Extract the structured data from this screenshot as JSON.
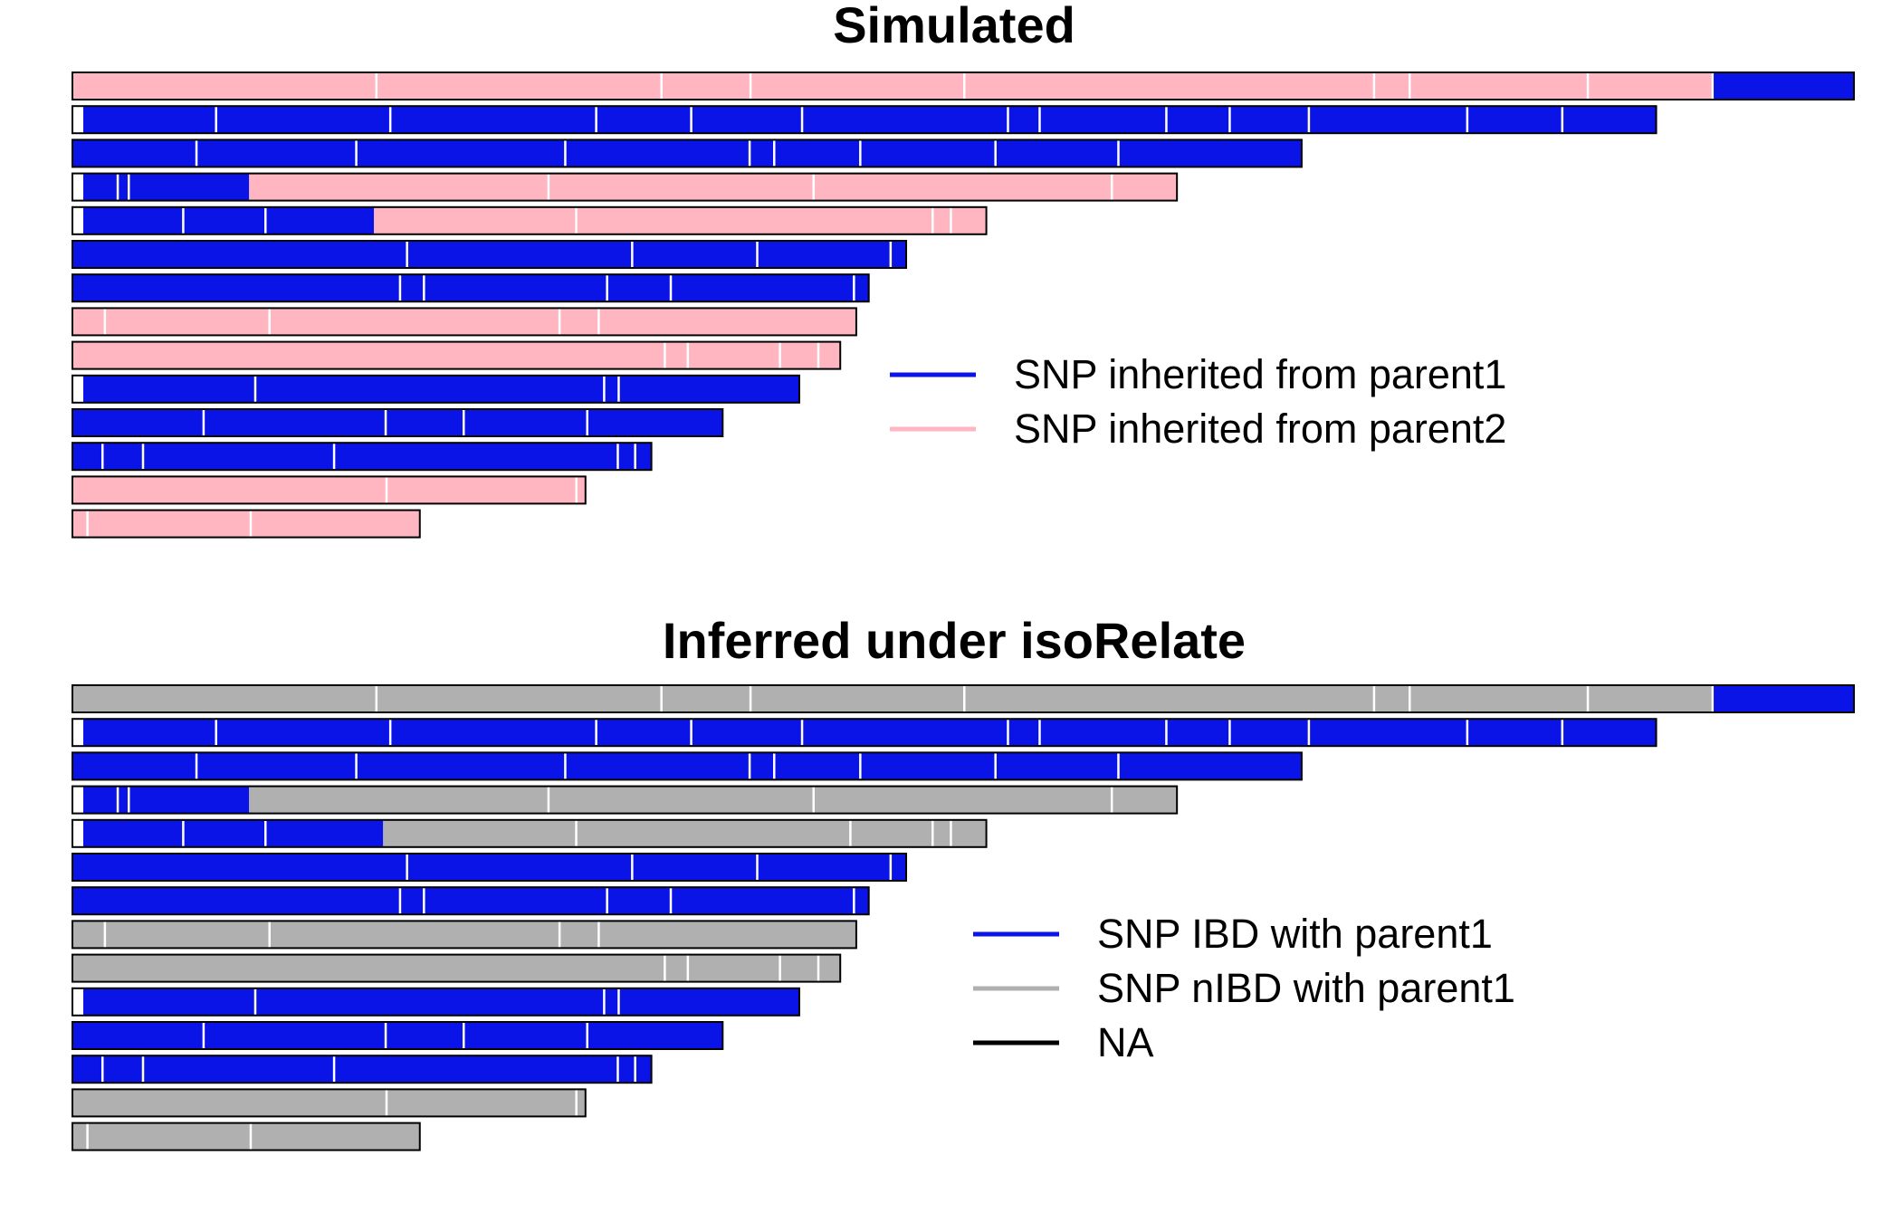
{
  "panels": [
    {
      "id": "simulated",
      "title": "Simulated",
      "chromosomes": [
        {
          "segments": [
            {
              "end": 0.92,
              "color": "pink"
            },
            {
              "end": 1.0,
              "color": "blue"
            }
          ],
          "gaps": [
            0.17,
            0.33,
            0.38,
            0.5,
            0.73,
            0.75,
            0.85,
            0.92
          ]
        },
        {
          "na_start": true,
          "segments": [
            {
              "end": 1.0,
              "color": "blue"
            }
          ],
          "gaps": [
            0.09,
            0.2,
            0.33,
            0.39,
            0.46,
            0.59,
            0.61,
            0.69,
            0.73,
            0.78,
            0.88,
            0.94
          ]
        },
        {
          "segments": [
            {
              "end": 1.0,
              "color": "blue"
            }
          ],
          "gaps": [
            0.1,
            0.23,
            0.4,
            0.55,
            0.57,
            0.64,
            0.75,
            0.85
          ]
        },
        {
          "na_start": true,
          "segments": [
            {
              "end": 0.16,
              "color": "blue"
            },
            {
              "end": 1.0,
              "color": "pink"
            }
          ],
          "gaps": [
            0.04,
            0.05,
            0.43,
            0.67,
            0.94
          ]
        },
        {
          "na_start": true,
          "segments": [
            {
              "end": 0.33,
              "color": "blue"
            },
            {
              "end": 1.0,
              "color": "pink"
            }
          ],
          "gaps": [
            0.12,
            0.21,
            0.55,
            0.94,
            0.96
          ]
        },
        {
          "segments": [
            {
              "end": 1.0,
              "color": "blue"
            }
          ],
          "gaps": [
            0.4,
            0.67,
            0.82,
            0.98
          ]
        },
        {
          "segments": [
            {
              "end": 1.0,
              "color": "blue"
            }
          ],
          "gaps": [
            0.41,
            0.44,
            0.67,
            0.75,
            0.98
          ]
        },
        {
          "segments": [
            {
              "end": 1.0,
              "color": "pink"
            }
          ],
          "gaps": [
            0.04,
            0.25,
            0.62,
            0.67
          ]
        },
        {
          "segments": [
            {
              "end": 1.0,
              "color": "pink"
            }
          ],
          "gaps": [
            0.77,
            0.8,
            0.92,
            0.97
          ]
        },
        {
          "na_start": true,
          "segments": [
            {
              "end": 1.0,
              "color": "blue"
            }
          ],
          "gaps": [
            0.25,
            0.73,
            0.75
          ]
        },
        {
          "segments": [
            {
              "end": 1.0,
              "color": "blue"
            }
          ],
          "gaps": [
            0.2,
            0.48,
            0.6,
            0.79
          ]
        },
        {
          "segments": [
            {
              "end": 1.0,
              "color": "blue"
            }
          ],
          "gaps": [
            0.05,
            0.12,
            0.45,
            0.94,
            0.97
          ]
        },
        {
          "segments": [
            {
              "end": 1.0,
              "color": "pink"
            }
          ],
          "gaps": [
            0.61,
            0.98
          ]
        },
        {
          "segments": [
            {
              "end": 1.0,
              "color": "pink"
            }
          ],
          "gaps": [
            0.04,
            0.51
          ]
        }
      ],
      "legend": [
        {
          "label": "SNP inherited from parent1",
          "color": "blue"
        },
        {
          "label": "SNP inherited from parent2",
          "color": "pink"
        }
      ]
    },
    {
      "id": "inferred",
      "title": "Inferred under isoRelate",
      "chromosomes": [
        {
          "segments": [
            {
              "end": 0.92,
              "color": "grey"
            },
            {
              "end": 1.0,
              "color": "blue"
            }
          ],
          "gaps": [
            0.17,
            0.33,
            0.38,
            0.5,
            0.73,
            0.75,
            0.85,
            0.92
          ]
        },
        {
          "na_start": true,
          "segments": [
            {
              "end": 1.0,
              "color": "blue"
            }
          ],
          "gaps": [
            0.09,
            0.2,
            0.33,
            0.39,
            0.46,
            0.59,
            0.61,
            0.69,
            0.73,
            0.78,
            0.88,
            0.94
          ]
        },
        {
          "segments": [
            {
              "end": 1.0,
              "color": "blue"
            }
          ],
          "gaps": [
            0.1,
            0.23,
            0.4,
            0.55,
            0.57,
            0.64,
            0.75,
            0.85
          ]
        },
        {
          "na_start": true,
          "segments": [
            {
              "end": 0.16,
              "color": "blue"
            },
            {
              "end": 1.0,
              "color": "grey"
            }
          ],
          "gaps": [
            0.04,
            0.05,
            0.43,
            0.67,
            0.94
          ]
        },
        {
          "na_start": true,
          "segments": [
            {
              "end": 0.34,
              "color": "blue"
            },
            {
              "end": 1.0,
              "color": "grey"
            }
          ],
          "gaps": [
            0.12,
            0.21,
            0.55,
            0.85,
            0.94,
            0.96
          ]
        },
        {
          "segments": [
            {
              "end": 1.0,
              "color": "blue"
            }
          ],
          "gaps": [
            0.4,
            0.67,
            0.82,
            0.98
          ]
        },
        {
          "segments": [
            {
              "end": 1.0,
              "color": "blue"
            }
          ],
          "gaps": [
            0.41,
            0.44,
            0.67,
            0.75,
            0.98
          ]
        },
        {
          "segments": [
            {
              "end": 1.0,
              "color": "grey"
            }
          ],
          "gaps": [
            0.04,
            0.25,
            0.62,
            0.67
          ]
        },
        {
          "segments": [
            {
              "end": 1.0,
              "color": "grey"
            }
          ],
          "gaps": [
            0.77,
            0.8,
            0.92,
            0.97
          ]
        },
        {
          "na_start": true,
          "segments": [
            {
              "end": 1.0,
              "color": "blue"
            }
          ],
          "gaps": [
            0.25,
            0.73,
            0.75
          ]
        },
        {
          "segments": [
            {
              "end": 1.0,
              "color": "blue"
            }
          ],
          "gaps": [
            0.2,
            0.48,
            0.6,
            0.79
          ]
        },
        {
          "segments": [
            {
              "end": 1.0,
              "color": "blue"
            }
          ],
          "gaps": [
            0.05,
            0.12,
            0.45,
            0.94,
            0.97
          ]
        },
        {
          "segments": [
            {
              "end": 1.0,
              "color": "grey"
            }
          ],
          "gaps": [
            0.61,
            0.98
          ]
        },
        {
          "segments": [
            {
              "end": 1.0,
              "color": "grey"
            }
          ],
          "gaps": [
            0.04,
            0.51
          ]
        }
      ],
      "legend": [
        {
          "label": "SNP IBD with parent1",
          "color": "blue"
        },
        {
          "label": "SNP nIBD with parent1",
          "color": "grey"
        },
        {
          "label": "NA",
          "color": "black"
        }
      ]
    }
  ],
  "chromosome_lengths": [
    1.0,
    0.889,
    0.69,
    0.62,
    0.513,
    0.468,
    0.447,
    0.44,
    0.431,
    0.408,
    0.365,
    0.325,
    0.288,
    0.195
  ],
  "colors": {
    "blue": "#0a14e6",
    "pink": "#ffb6c1",
    "grey": "#b0b0b0",
    "black": "#000000",
    "gap": "#ffffff"
  }
}
